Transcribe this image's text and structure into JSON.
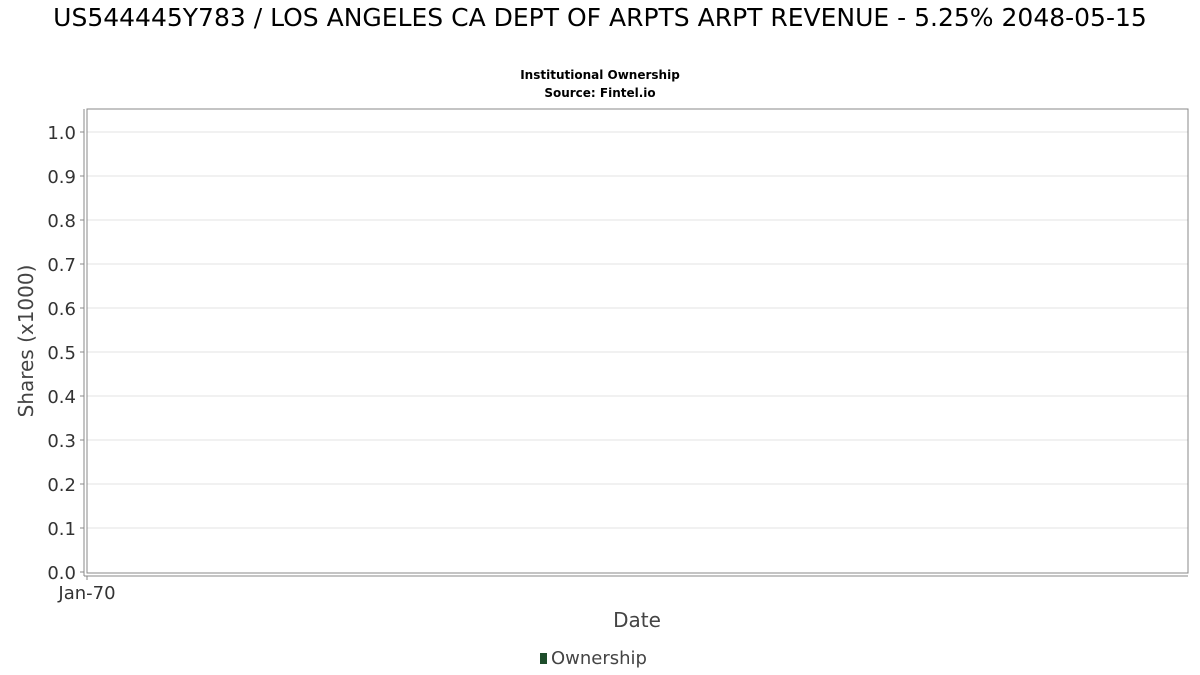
{
  "chart_data": {
    "type": "line",
    "title": "US544445Y783 / LOS ANGELES CA DEPT OF ARPTS ARPT REVENUE - 5.25% 2048-05-15",
    "subtitle": "Institutional Ownership",
    "source": "Source: Fintel.io",
    "xlabel": "Date",
    "ylabel": "Shares (x1000)",
    "x_ticks": [
      "Jan-70"
    ],
    "y_ticks": [
      "0.0",
      "0.1",
      "0.2",
      "0.3",
      "0.4",
      "0.5",
      "0.6",
      "0.7",
      "0.8",
      "0.9",
      "1.0"
    ],
    "ylim": [
      0,
      1.05
    ],
    "grid": true,
    "legend_position": "bottom",
    "series": [
      {
        "name": "Ownership",
        "color": "#1e4d2b",
        "x": [],
        "values": []
      }
    ]
  }
}
